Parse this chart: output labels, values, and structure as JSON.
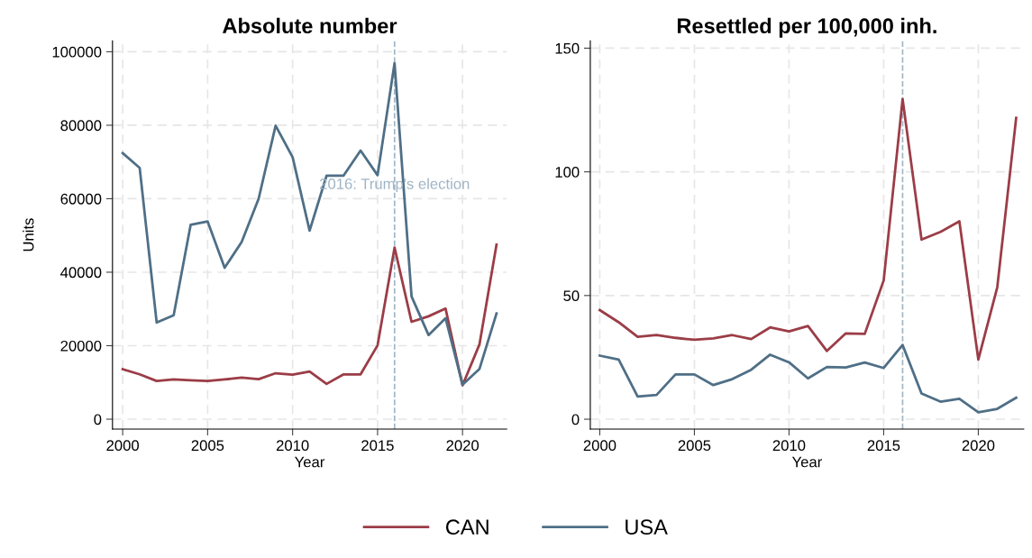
{
  "chart_data": [
    {
      "type": "line",
      "title": "Absolute number",
      "xlabel": "Year",
      "ylabel": "Units",
      "x": [
        2000,
        2001,
        2002,
        2003,
        2004,
        2005,
        2006,
        2007,
        2008,
        2009,
        2010,
        2011,
        2012,
        2013,
        2014,
        2015,
        2016,
        2017,
        2018,
        2019,
        2020,
        2021,
        2022
      ],
      "series": [
        {
          "name": "CAN",
          "color": "#9b3d47",
          "values": [
            13600,
            12200,
            10400,
            10800,
            10600,
            10400,
            10800,
            11300,
            10900,
            12500,
            12100,
            13000,
            9600,
            12200,
            12200,
            20100,
            46700,
            26500,
            28000,
            30100,
            9200,
            20400,
            47500
          ]
        },
        {
          "name": "USA",
          "color": "#4f6f86",
          "values": [
            72400,
            68400,
            26300,
            28300,
            52900,
            53800,
            41200,
            48200,
            60000,
            79900,
            71300,
            51300,
            66300,
            66300,
            73100,
            66400,
            96900,
            33400,
            22900,
            27500,
            9400,
            13700,
            28800
          ]
        }
      ],
      "xlim": [
        1999.4,
        2022.6
      ],
      "xticks": [
        2000,
        2005,
        2010,
        2015,
        2020
      ],
      "ylim": [
        -2700,
        103000
      ],
      "yticks": [
        0,
        20000,
        40000,
        60000,
        80000,
        100000
      ],
      "ref_lines": [
        {
          "axis": "x",
          "value": 2016,
          "label": "2016: Trump's election",
          "color": "#9fb4c4",
          "line_style": "dashed"
        }
      ],
      "grid": true,
      "legend": "bottom",
      "line_style": "solid",
      "marker": "none"
    },
    {
      "type": "line",
      "title": "Resettled per 100,000 inh.",
      "xlabel": "Year",
      "x": [
        2000,
        2001,
        2002,
        2003,
        2004,
        2005,
        2006,
        2007,
        2008,
        2009,
        2010,
        2011,
        2012,
        2013,
        2014,
        2015,
        2016,
        2017,
        2018,
        2019,
        2020,
        2021,
        2022
      ],
      "series": [
        {
          "name": "CAN",
          "color": "#9b3d47",
          "values": [
            44.1,
            39.2,
            33.3,
            34.0,
            32.9,
            32.1,
            32.7,
            34.0,
            32.4,
            37.1,
            35.5,
            37.7,
            27.6,
            34.7,
            34.5,
            56.1,
            129.4,
            72.6,
            75.7,
            80.0,
            24.1,
            53.3,
            121.8
          ]
        },
        {
          "name": "USA",
          "color": "#4f6f86",
          "values": [
            25.7,
            24.1,
            9.2,
            9.8,
            18.1,
            18.1,
            13.8,
            16.2,
            20.0,
            26.1,
            23.0,
            16.5,
            21.1,
            20.9,
            22.9,
            20.7,
            30.0,
            10.4,
            7.1,
            8.3,
            2.8,
            4.2,
            8.7
          ]
        }
      ],
      "xlim": [
        1999.5,
        2022.4
      ],
      "xticks": [
        2000,
        2005,
        2010,
        2015,
        2020
      ],
      "ylim": [
        -4,
        153
      ],
      "yticks": [
        0,
        50,
        100,
        150
      ],
      "ref_lines": [
        {
          "axis": "x",
          "value": 2016,
          "color": "#9fb4c4",
          "line_style": "dashed"
        }
      ],
      "grid": true,
      "legend": "bottom",
      "line_style": "solid",
      "marker": "none"
    }
  ]
}
